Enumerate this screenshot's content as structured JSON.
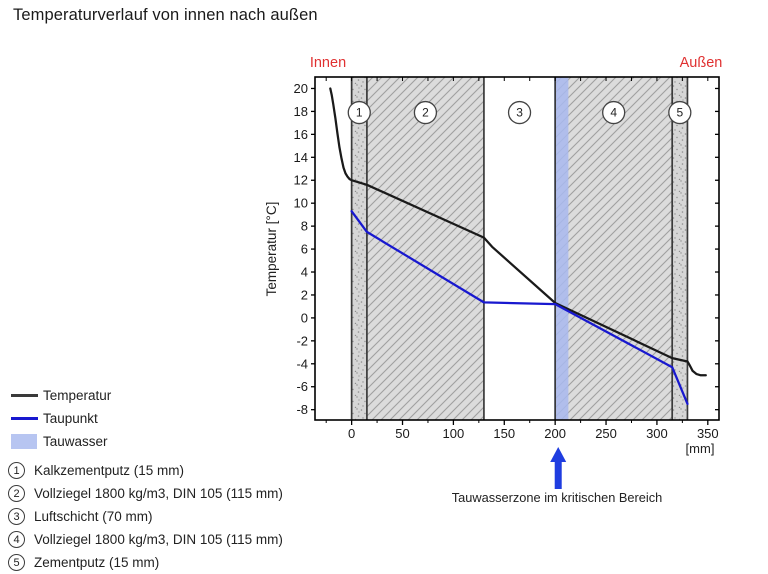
{
  "title": "Temperaturverlauf von innen nach außen",
  "chart_data": {
    "type": "line",
    "title": "Temperaturverlauf von innen nach außen",
    "inside_label": "Innen",
    "outside_label": "Außen",
    "ylabel": "Temperatur [°C]",
    "x_unit_label": "[mm]",
    "xlim": [
      -36,
      361
    ],
    "ylim": [
      -8.9,
      21
    ],
    "x_ticks": [
      0,
      50,
      100,
      150,
      200,
      250,
      300,
      350
    ],
    "x_minor_step": 25,
    "y_ticks": [
      -8,
      -6,
      -4,
      -2,
      0,
      2,
      4,
      6,
      8,
      10,
      12,
      14,
      16,
      18,
      20
    ],
    "grid": false,
    "legend_position": "bottom-left",
    "layers": [
      {
        "id": "1",
        "name": "Kalkzementputz",
        "from": 0,
        "to": 15,
        "pattern": "stipple"
      },
      {
        "id": "2",
        "name": "Vollziegel",
        "from": 15,
        "to": 130,
        "pattern": "hatch"
      },
      {
        "id": "3",
        "name": "Luftschicht",
        "from": 130,
        "to": 200,
        "pattern": "none"
      },
      {
        "id": "4",
        "name": "Vollziegel",
        "from": 200,
        "to": 315,
        "pattern": "hatch"
      },
      {
        "id": "5",
        "name": "Zementputz",
        "from": 315,
        "to": 330,
        "pattern": "stipple"
      }
    ],
    "layer_label_y": 17.9,
    "tauwasser_zone": {
      "from": 199,
      "to": 213,
      "color": "#a9b8ef"
    },
    "series": [
      {
        "name": "Temperatur",
        "color": "#1a1a1a",
        "points": [
          [
            -21,
            20
          ],
          [
            -19.5,
            19.4
          ],
          [
            -18,
            18.6
          ],
          [
            -16,
            17.4
          ],
          [
            -14,
            16.1
          ],
          [
            -12,
            14.9
          ],
          [
            -10,
            13.9
          ],
          [
            -8,
            13.1
          ],
          [
            -6,
            12.6
          ],
          [
            -4,
            12.3
          ],
          [
            -2,
            12.1
          ],
          [
            0,
            12
          ],
          [
            15,
            11.6
          ],
          [
            130,
            7.0
          ],
          [
            138,
            6.2
          ],
          [
            200,
            1.3
          ],
          [
            315,
            -3.5
          ],
          [
            330,
            -3.8
          ],
          [
            332,
            -4.1
          ],
          [
            335,
            -4.6
          ],
          [
            339,
            -4.9
          ],
          [
            343,
            -5.0
          ],
          [
            348,
            -5.0
          ]
        ]
      },
      {
        "name": "Taupunkt",
        "color": "#1818cf",
        "points": [
          [
            0,
            9.3
          ],
          [
            15,
            7.5
          ],
          [
            130,
            1.35
          ],
          [
            200,
            1.2
          ],
          [
            315,
            -4.3
          ],
          [
            330,
            -7.5
          ]
        ]
      }
    ],
    "annotation": {
      "text": "Tauwasserzone im kritischen Bereich",
      "arrow_x_mm": 203,
      "arrow_color": "#1f3de0"
    }
  },
  "legend": {
    "items": [
      {
        "label": "Temperatur",
        "swatch": "line",
        "color": "#3a3a3a"
      },
      {
        "label": "Taupunkt",
        "swatch": "line",
        "color": "#1818cf"
      },
      {
        "label": "Tauwasser",
        "swatch": "rect",
        "color": "#b7c5f1"
      }
    ]
  },
  "materials": [
    {
      "id": "1",
      "label": "Kalkzementputz (15 mm)"
    },
    {
      "id": "2",
      "label": "Vollziegel 1800 kg/m3, DIN 105 (115 mm)"
    },
    {
      "id": "3",
      "label": "Luftschicht (70 mm)"
    },
    {
      "id": "4",
      "label": "Vollziegel 1800 kg/m3, DIN 105 (115 mm)"
    },
    {
      "id": "5",
      "label": "Zementputz (15 mm)"
    }
  ]
}
